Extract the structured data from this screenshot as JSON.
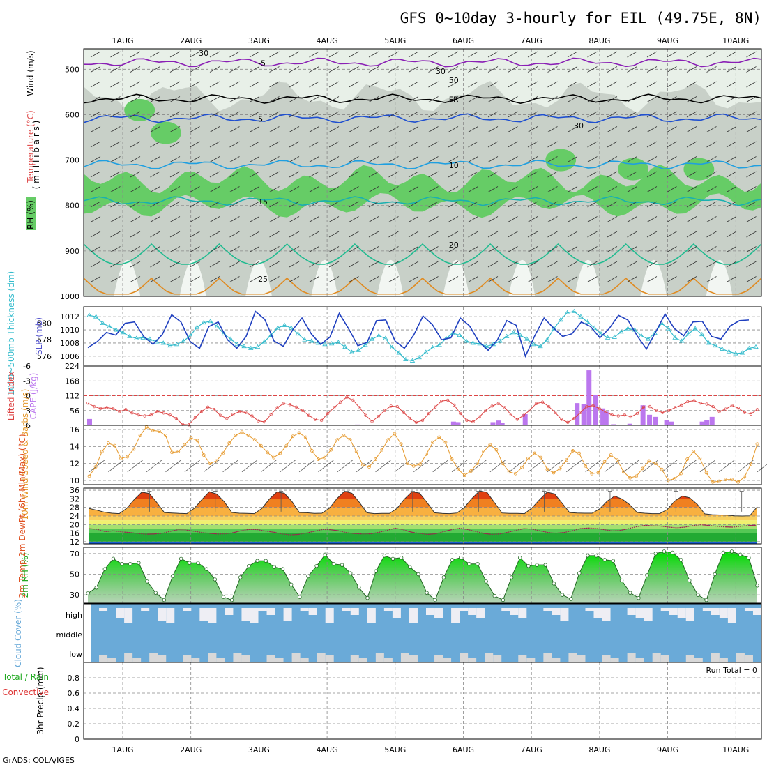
{
  "title": "GFS 0~10day 3-hourly for EIL (49.75E, 8N)",
  "footer": "GrADS: COLA/IGES",
  "date_labels": [
    "1AUG",
    "2AUG",
    "3AUG",
    "4AUG",
    "5AUG",
    "6AUG",
    "7AUG",
    "8AUG",
    "9AUG",
    "10AUG"
  ],
  "colors": {
    "grid": "#888888",
    "rh_green": "#66cc66",
    "rh_gray": "#c8d0c8",
    "rh_light": "#e8f0e8",
    "slp": "#1f3fbf",
    "thick": "#33bbcc",
    "lifted": "#dd4444",
    "cape": "#bb77ee",
    "wind10": "#e69a2e",
    "rh2m": "#22bb22",
    "cloud": "#6aaad8",
    "cloud_blank": "#eeeef4"
  },
  "panel_labels": {
    "upper_rh": "RH (%)",
    "upper_temp": "Temperature (°C)",
    "upper_wind": "Wind (m/s)",
    "upper_mb": "( m i l l i b a r s )",
    "thickness": "1000~500mb Thickness (dm)",
    "slp": "SLP (mb)",
    "lifted": "Lifted Index",
    "cape": "CAPE (J/kg)",
    "wind10": "10m Wind Speed & Barbs (m/s)",
    "temp2m": "2m Temp 2m DewPt (6hr Min/Max) (°C)",
    "rh2m": "2m RH (%)",
    "cloud": "Cloud Cover (%)",
    "precip": "3hr Precip (mm)",
    "precip_total": "Total / Rain",
    "precip_conv": "Convective",
    "run_total": "Run Total = 0"
  },
  "chart_data": [
    {
      "type": "contour",
      "name": "upper-air",
      "ylabel": "millibars",
      "y_ticks": [
        500,
        600,
        700,
        800,
        900,
        1000
      ],
      "temperature_contours": [
        {
          "label": "-5",
          "level_mb": 485
        },
        {
          "label": "FR",
          "level_mb": 565
        },
        {
          "label": "5",
          "level_mb": 608
        },
        {
          "label": "10",
          "level_mb": 710
        },
        {
          "label": "15",
          "level_mb": 790
        },
        {
          "label": "20",
          "level_mb": 885
        },
        {
          "label": "25",
          "level_mb": 960
        }
      ],
      "rh_labels": [
        "30",
        "50"
      ]
    },
    {
      "type": "line",
      "name": "thickness-slp",
      "y_left_ticks": [
        576,
        578,
        580
      ],
      "y_right_ticks": [
        1006,
        1008,
        1010,
        1012
      ],
      "slp_ylim": [
        1004.5,
        1013.5
      ],
      "slp": [
        1007.3,
        1008.2,
        1009.6,
        1009.2,
        1011,
        1011.2,
        1009,
        1007.8,
        1009.3,
        1012.3,
        1011.2,
        1008.2,
        1007.2,
        1010.5,
        1011.2,
        1008.5,
        1007.2,
        1009,
        1012.8,
        1011.6,
        1008.3,
        1007.5,
        1010,
        1011.8,
        1009.4,
        1007.8,
        1008.9,
        1012.5,
        1010.2,
        1007.6,
        1008.1,
        1011.4,
        1011.5,
        1008.3,
        1007.2,
        1009.2,
        1012.1,
        1010.8,
        1008.5,
        1008.8,
        1011.8,
        1010.6,
        1008.2,
        1006.9,
        1008.5,
        1011.4,
        1010.7,
        1006,
        1009.1,
        1011.8,
        1010.3,
        1009,
        1009.4,
        1011.2,
        1010.5,
        1008.8,
        1010.2,
        1012.2,
        1011.5,
        1009.1,
        1007.1,
        1009.7,
        1012.4,
        1010.2,
        1009.1,
        1011.2,
        1011.3,
        1009,
        1008.6,
        1010.6,
        1011.4,
        1011.5
      ],
      "thickness": [
        1012.2,
        1012,
        1011,
        1010.5,
        1010,
        1009.6,
        1009,
        1008.7,
        1008.8,
        1008.6,
        1008.2,
        1008,
        1007.6,
        1007.8,
        1008.3,
        1009.1,
        1010.4,
        1011.1,
        1011.3,
        1010.5,
        1009.4,
        1008.6,
        1007.8,
        1007.5,
        1007.2,
        1007.4,
        1008.2,
        1009.2,
        1010.3,
        1010.7,
        1010.3,
        1009.4,
        1008.5,
        1008.3,
        1008,
        1007.8,
        1007.9,
        1008.1,
        1007.4,
        1006.6,
        1006.9,
        1007.7,
        1008.6,
        1009.1,
        1008.7,
        1007.3,
        1006.5,
        1005.5,
        1005.3,
        1005.8,
        1006.6,
        1007.3,
        1007.7,
        1008.7,
        1009.5,
        1009.2,
        1008.3,
        1008,
        1007.9,
        1007.5,
        1007.8,
        1008.3,
        1009,
        1009.6,
        1009.2,
        1008.6,
        1007.8,
        1007.5,
        1008.5,
        1010.2,
        1011.5,
        1012.6,
        1012.8,
        1012,
        1011.2,
        1010.3,
        1009.4,
        1008.8,
        1008.9,
        1009.7,
        1010.2,
        1010,
        1009.1,
        1008.6,
        1009.5,
        1011,
        1010.2,
        1008.8,
        1008.3,
        1009.4,
        1010.2,
        1009.3,
        1008,
        1007.6,
        1007.1,
        1006.7,
        1006.4,
        1006.5,
        1007.2,
        1007.4
      ]
    },
    {
      "type": "bar+line",
      "name": "lifted-cape",
      "lifted_ticks": [
        -6,
        -3,
        0,
        3,
        6
      ],
      "cape_ticks": [
        56,
        112,
        168,
        224
      ],
      "lifted_index": [
        1.5,
        2.2,
        2.6,
        2.4,
        2.6,
        3.2,
        2.8,
        3.5,
        3.9,
        4.1,
        3.9,
        3.2,
        3.5,
        3.9,
        4.6,
        5.8,
        5.9,
        4.4,
        3.2,
        2.3,
        2.8,
        4.0,
        4.6,
        3.8,
        3.2,
        3.4,
        4.1,
        5.1,
        5.3,
        3.8,
        2.4,
        1.6,
        1.8,
        2.3,
        3.0,
        4.0,
        4.8,
        5.0,
        3.6,
        2.4,
        1.3,
        0.3,
        0.9,
        2.4,
        4.0,
        5.2,
        4.2,
        3.0,
        2.1,
        2.2,
        3.4,
        4.6,
        5.4,
        5.0,
        3.6,
        2.3,
        1.1,
        0.9,
        1.9,
        3.6,
        5.0,
        5.3,
        4.3,
        3.0,
        2.1,
        1.6,
        2.4,
        3.8,
        4.8,
        4.0,
        2.9,
        1.6,
        1.3,
        2.2,
        3.4,
        4.8,
        5.4,
        4.6,
        3.4,
        2.2,
        2.0,
        2.6,
        3.3,
        3.9,
        4.1,
        3.9,
        4.3,
        3.6,
        2.3,
        2.2,
        3.0,
        3.4,
        3.0,
        2.4,
        1.9,
        1.2,
        1.0,
        1.5,
        1.7,
        2.2,
        3.2,
        2.7,
        2.0,
        2.5,
        3.4,
        3.7,
        2.8
      ],
      "cape_bars": [
        [
          0.04,
          24
        ],
        [
          2.08,
          2
        ],
        [
          3.08,
          2
        ],
        [
          3.21,
          2
        ],
        [
          4.11,
          3
        ],
        [
          5.57,
          14
        ],
        [
          5.6,
          12
        ],
        [
          5.61,
          12
        ],
        [
          5.64,
          12
        ],
        [
          6.17,
          12
        ],
        [
          6.25,
          18
        ],
        [
          6.31,
          10
        ],
        [
          6.66,
          42
        ],
        [
          7.45,
          84
        ],
        [
          7.55,
          80
        ],
        [
          7.63,
          208
        ],
        [
          7.73,
          116
        ],
        [
          7.84,
          64
        ],
        [
          7.89,
          52
        ],
        [
          8.0,
          4
        ],
        [
          8.25,
          6
        ],
        [
          8.45,
          76
        ],
        [
          8.55,
          40
        ],
        [
          8.64,
          32
        ],
        [
          8.81,
          20
        ],
        [
          8.88,
          14
        ],
        [
          9.35,
          14
        ],
        [
          9.42,
          20
        ],
        [
          9.5,
          32
        ]
      ]
    },
    {
      "type": "line",
      "name": "wind10m",
      "ylabel": "m/s",
      "y_ticks": [
        10,
        12,
        14,
        16
      ],
      "ylim": [
        9.5,
        16.5
      ],
      "values": [
        10.5,
        11.6,
        13.4,
        14.4,
        14.1,
        12.6,
        12.8,
        13.7,
        15.3,
        16.3,
        15.9,
        15.8,
        15.3,
        13.3,
        13.4,
        14.2,
        15.0,
        14.7,
        13.0,
        12.0,
        12.3,
        13.2,
        14.4,
        15.3,
        15.7,
        15.3,
        14.8,
        14.1,
        13.3,
        12.7,
        13.2,
        14.1,
        15.2,
        15.6,
        15.1,
        13.5,
        12.5,
        12.7,
        13.6,
        14.8,
        15.3,
        14.8,
        13.4,
        11.8,
        11.6,
        12.5,
        13.6,
        14.8,
        15.5,
        14.3,
        12.0,
        11.7,
        11.9,
        13.1,
        14.5,
        15.1,
        14.5,
        12.5,
        11.3,
        10.6,
        11.1,
        12.0,
        13.4,
        14.2,
        13.6,
        12.0,
        11.0,
        10.8,
        11.5,
        12.6,
        13.2,
        12.7,
        11.3,
        10.9,
        11.4,
        12.4,
        13.5,
        13.2,
        11.7,
        10.8,
        10.9,
        12.2,
        13.0,
        12.4,
        11.0,
        10.3,
        10.5,
        11.4,
        12.3,
        12.0,
        11.3,
        10.0,
        10.2,
        10.8,
        12.5,
        13.4,
        12.6,
        10.9,
        9.8,
        9.9,
        10.1,
        10.1,
        9.8,
        10.4,
        11.9,
        14.3
      ]
    },
    {
      "type": "area",
      "name": "temp2m",
      "ylabel": "°C",
      "y_ticks": [
        12,
        16,
        20,
        24,
        28,
        32,
        36
      ],
      "ylim": [
        11,
        37
      ],
      "temp": [
        27.5,
        26.7,
        25.8,
        25.3,
        25.1,
        27.6,
        31.7,
        35.1,
        34.5,
        30.3,
        25.6,
        25.4,
        25.2,
        25.1,
        27.6,
        31.6,
        35.3,
        34.2,
        30.6,
        25.6,
        25.3,
        25.2,
        25.1,
        27.5,
        31.9,
        35.2,
        34.6,
        30.8,
        25.6,
        25.5,
        25.2,
        25.3,
        27.6,
        32.1,
        35.5,
        34.6,
        30.3,
        25.5,
        25.1,
        25.2,
        25.2,
        27.5,
        31.9,
        35.3,
        34.7,
        30.3,
        25.5,
        25.2,
        25.1,
        25.4,
        28.1,
        32.2,
        35.7,
        35.0,
        30.2,
        25.4,
        25.2,
        25.2,
        25.1,
        27.8,
        31.6,
        35.1,
        34.3,
        30.0,
        25.6,
        25.4,
        25.3,
        25.3,
        27.3,
        30.9,
        33.3,
        31.9,
        29.3,
        25.6,
        25.3,
        25.1,
        25.1,
        27.0,
        30.9,
        33.3,
        32.5,
        29.5,
        25.0,
        24.6,
        24.5,
        24.4,
        24.1,
        24.0,
        24.1,
        28.3
      ],
      "dewpt": [
        18.1,
        17.8,
        16.7,
        17.1,
        16.6,
        16.3,
        15.9,
        15.5,
        15.6,
        15.9,
        16.8,
        17.6,
        17.5,
        16.9,
        16.3,
        15.9,
        15.6,
        15.7,
        16.3,
        17.3,
        17.8,
        17.6,
        16.9,
        16.4,
        15.6,
        15.2,
        15.4,
        16.1,
        16.9,
        17.7,
        17.6,
        17.1,
        16.2,
        15.8,
        15.6,
        15.7,
        16.4,
        17.3,
        18.3,
        17.6,
        16.5,
        15.9,
        15.4,
        15.7,
        16.7,
        17.6,
        18.3,
        17.7,
        16.8,
        15.9,
        15.4,
        15.6,
        16.4,
        17.3,
        18.1,
        17.9,
        17.1,
        16.3,
        16.0,
        16.3,
        17.1,
        18.1,
        18.4,
        18.2,
        17.6,
        17.1,
        17.3,
        18.1,
        19.0,
        19.6,
        19.5,
        19.3,
        18.8,
        18.5,
        18.8,
        19.5,
        19.9,
        19.6,
        19.2,
        18.9,
        18.8,
        19.2,
        19.6,
        19.7
      ]
    },
    {
      "type": "area",
      "name": "rh2m",
      "ylabel": "%",
      "y_ticks": [
        30,
        50,
        70
      ],
      "ylim": [
        22,
        76
      ],
      "values": [
        31.5,
        37.0,
        55.0,
        65.0,
        60.0,
        60.0,
        61.0,
        43.0,
        32.0,
        25.0,
        48.0,
        65.0,
        61.0,
        61.0,
        55.0,
        45.0,
        28.0,
        25.0,
        47.0,
        58.0,
        63.0,
        63.0,
        57.0,
        55.0,
        40.0,
        28.0,
        48.0,
        58.0,
        69.0,
        60.0,
        59.0,
        51.0,
        37.0,
        27.0,
        53.0,
        68.0,
        65.0,
        66.0,
        57.0,
        50.0,
        32.0,
        25.0,
        47.0,
        64.0,
        66.0,
        60.0,
        60.0,
        43.0,
        29.0,
        25.0,
        47.0,
        66.0,
        58.0,
        59.0,
        59.0,
        41.0,
        30.0,
        26.0,
        51.0,
        68.0,
        68.0,
        64.0,
        63.0,
        44.0,
        32.0,
        27.0,
        49.0,
        70.0,
        72.0,
        71.0,
        64.0,
        44.0,
        30.0,
        25.0,
        50.0,
        71.0,
        72.0,
        69.0,
        66.0,
        39.0
      ]
    },
    {
      "type": "heatmap",
      "name": "cloud-cover",
      "row_labels": [
        "high",
        "middle",
        "low"
      ]
    },
    {
      "type": "bar",
      "name": "precip",
      "ylabel": "mm",
      "y_ticks": [
        0,
        0.2,
        0.4,
        0.6,
        0.8
      ],
      "ylim": [
        0,
        1
      ]
    }
  ]
}
